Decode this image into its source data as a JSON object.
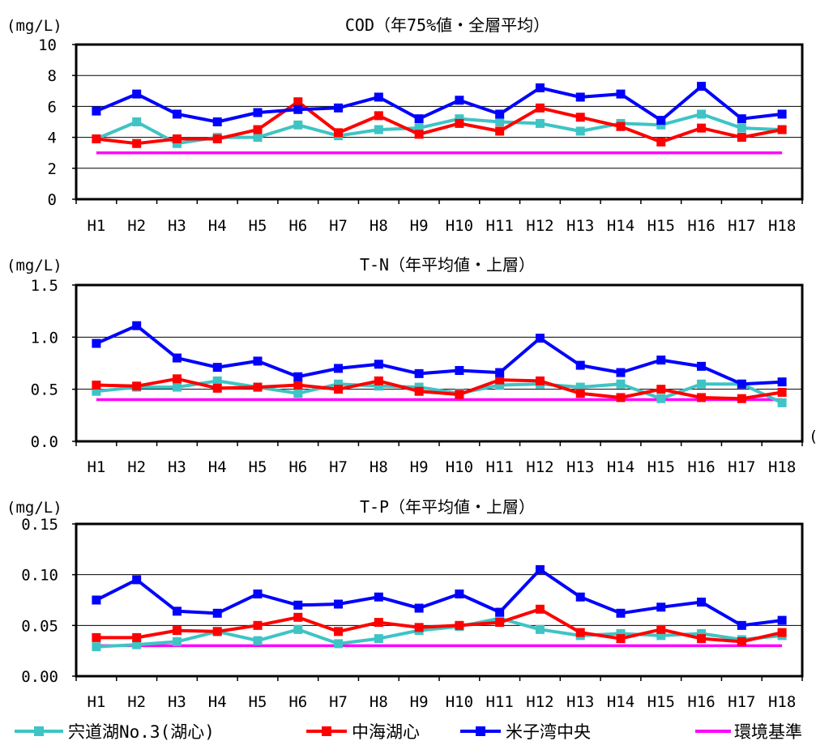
{
  "chart_data": [
    {
      "type": "line",
      "title": "COD（年75%値・全層平均）",
      "ylabel": "(mg/L)",
      "xlabel": "",
      "categories": [
        "H1",
        "H2",
        "H3",
        "H4",
        "H5",
        "H6",
        "H7",
        "H8",
        "H9",
        "H10",
        "H11",
        "H12",
        "H13",
        "H14",
        "H15",
        "H16",
        "H17",
        "H18"
      ],
      "ylim": [
        0,
        10
      ],
      "yticks": [
        "0",
        "2",
        "4",
        "6",
        "8",
        "10"
      ],
      "grid": true,
      "series": [
        {
          "name": "宍道湖No.3(湖心)",
          "values": [
            3.9,
            5.0,
            3.6,
            4.0,
            4.0,
            4.8,
            4.1,
            4.5,
            4.6,
            5.2,
            5.0,
            4.9,
            4.4,
            4.9,
            4.8,
            5.5,
            4.6,
            4.5
          ]
        },
        {
          "name": "中海湖心",
          "values": [
            3.9,
            3.6,
            3.9,
            3.9,
            4.5,
            6.3,
            4.3,
            5.4,
            4.2,
            4.9,
            4.4,
            5.9,
            5.3,
            4.7,
            3.7,
            4.6,
            4.0,
            4.5
          ]
        },
        {
          "name": "米子湾中央",
          "values": [
            5.7,
            6.8,
            5.5,
            5.0,
            5.6,
            5.8,
            5.9,
            6.6,
            5.2,
            6.4,
            5.5,
            7.2,
            6.6,
            6.8,
            5.1,
            7.3,
            5.2,
            5.5
          ]
        },
        {
          "name": "環境基準",
          "values": [
            3.0,
            3.0,
            3.0,
            3.0,
            3.0,
            3.0,
            3.0,
            3.0,
            3.0,
            3.0,
            3.0,
            3.0,
            3.0,
            3.0,
            3.0,
            3.0,
            3.0,
            3.0
          ]
        }
      ]
    },
    {
      "type": "line",
      "title": "T-N（年平均値・上層）",
      "ylabel": "(mg/L)",
      "xlabel": "",
      "categories": [
        "H1",
        "H2",
        "H3",
        "H4",
        "H5",
        "H6",
        "H7",
        "H8",
        "H9",
        "H10",
        "H11",
        "H12",
        "H13",
        "H14",
        "H15",
        "H16",
        "H17",
        "H18"
      ],
      "ylim": [
        0,
        1.5
      ],
      "yticks": [
        "0.0",
        "0.5",
        "1.0",
        "1.5"
      ],
      "grid": true,
      "series": [
        {
          "name": "宍道湖No.3(湖心)",
          "values": [
            0.48,
            0.52,
            0.52,
            0.58,
            0.52,
            0.46,
            0.55,
            0.53,
            0.52,
            0.46,
            0.54,
            0.55,
            0.52,
            0.55,
            0.41,
            0.55,
            0.55,
            0.37
          ]
        },
        {
          "name": "中海湖心",
          "values": [
            0.54,
            0.53,
            0.6,
            0.51,
            0.52,
            0.54,
            0.5,
            0.58,
            0.48,
            0.45,
            0.59,
            0.58,
            0.46,
            0.42,
            0.5,
            0.42,
            0.41,
            0.47
          ]
        },
        {
          "name": "米子湾中央",
          "values": [
            0.94,
            1.11,
            0.8,
            0.71,
            0.77,
            0.62,
            0.7,
            0.74,
            0.65,
            0.68,
            0.66,
            0.99,
            0.73,
            0.66,
            0.78,
            0.72,
            0.55,
            0.57
          ]
        },
        {
          "name": "環境基準",
          "values": [
            0.4,
            0.4,
            0.4,
            0.4,
            0.4,
            0.4,
            0.4,
            0.4,
            0.4,
            0.4,
            0.4,
            0.4,
            0.4,
            0.4,
            0.4,
            0.4,
            0.4,
            0.4
          ]
        }
      ]
    },
    {
      "type": "line",
      "title": "T-P（年平均値・上層）",
      "ylabel": "(mg/L)",
      "xlabel": "",
      "categories": [
        "H1",
        "H2",
        "H3",
        "H4",
        "H5",
        "H6",
        "H7",
        "H8",
        "H9",
        "H10",
        "H11",
        "H12",
        "H13",
        "H14",
        "H15",
        "H16",
        "H17",
        "H18"
      ],
      "ylim": [
        0,
        0.15
      ],
      "yticks": [
        "0.00",
        "0.05",
        "0.10",
        "0.15"
      ],
      "grid": true,
      "series": [
        {
          "name": "宍道湖No.3(湖心)",
          "values": [
            0.029,
            0.031,
            0.034,
            0.044,
            0.035,
            0.046,
            0.032,
            0.037,
            0.045,
            0.049,
            0.057,
            0.046,
            0.04,
            0.042,
            0.04,
            0.042,
            0.036,
            0.04
          ]
        },
        {
          "name": "中海湖心",
          "values": [
            0.038,
            0.038,
            0.045,
            0.044,
            0.05,
            0.058,
            0.044,
            0.053,
            0.048,
            0.05,
            0.053,
            0.066,
            0.043,
            0.037,
            0.046,
            0.037,
            0.034,
            0.043
          ]
        },
        {
          "name": "米子湾中央",
          "values": [
            0.075,
            0.095,
            0.064,
            0.062,
            0.081,
            0.07,
            0.071,
            0.078,
            0.067,
            0.081,
            0.063,
            0.105,
            0.078,
            0.062,
            0.068,
            0.073,
            0.05,
            0.055
          ]
        },
        {
          "name": "環境基準",
          "values": [
            0.03,
            0.03,
            0.03,
            0.03,
            0.03,
            0.03,
            0.03,
            0.03,
            0.03,
            0.03,
            0.03,
            0.03,
            0.03,
            0.03,
            0.03,
            0.03,
            0.03,
            0.03
          ]
        }
      ]
    }
  ],
  "legend": {
    "items": [
      {
        "name": "宍道湖No.3(湖心)",
        "color": "#3ec4c4",
        "marker": "square"
      },
      {
        "name": "中海湖心",
        "color": "#ff0000",
        "marker": "square"
      },
      {
        "name": "米子湾中央",
        "color": "#0000ff",
        "marker": "square"
      },
      {
        "name": "環境基準",
        "color": "#ff00ff",
        "marker": "none"
      }
    ]
  },
  "colors": {
    "shinjiko": "#3ec4c4",
    "nakaumi": "#ff0000",
    "yonago": "#0000ff",
    "standard": "#ff00ff"
  },
  "partial_text": {
    "right_edge_glyph": "("
  }
}
